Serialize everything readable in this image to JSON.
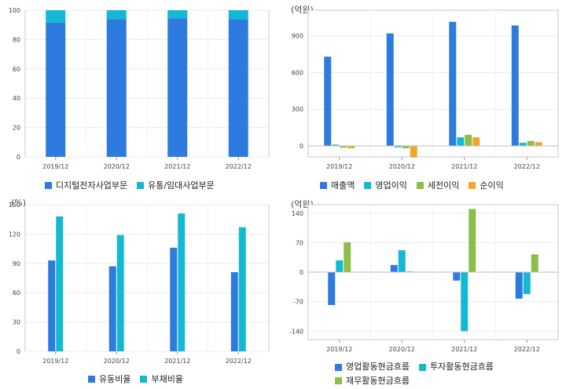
{
  "colors": {
    "blue": "#2e7bdf",
    "cyan": "#13b9d2",
    "green": "#8dbe4a",
    "orange": "#f2a72a"
  },
  "chart_data": [
    {
      "id": "business-mix",
      "type": "bar",
      "stacked": true,
      "unit": "",
      "categories": [
        "2019/12",
        "2020/12",
        "2021/12",
        "2022/12"
      ],
      "yticks": [
        0,
        20,
        40,
        60,
        80,
        100
      ],
      "ylim": [
        0,
        100
      ],
      "grid": true,
      "legend_position": "bottom",
      "series": [
        {
          "name": "디지털전자사업부문",
          "color": "#2e7bdf",
          "values": [
            91.5,
            94.0,
            94.5,
            94.0
          ]
        },
        {
          "name": "유통/임대사업부문",
          "color": "#13b9d2",
          "values": [
            8.5,
            6.0,
            5.5,
            6.0
          ]
        }
      ]
    },
    {
      "id": "income",
      "type": "bar",
      "unit": "(억원)",
      "categories": [
        "2019/12",
        "2020/12",
        "2021/12",
        "2022/12"
      ],
      "yticks": [
        0,
        300,
        600,
        900
      ],
      "ylim": [
        -90,
        1110
      ],
      "grid": true,
      "legend_position": "bottom",
      "series": [
        {
          "name": "매출액",
          "color": "#2e7bdf",
          "values": [
            730,
            920,
            1015,
            985
          ]
        },
        {
          "name": "영업이익",
          "color": "#13b9d2",
          "values": [
            10,
            -12,
            70,
            25
          ]
        },
        {
          "name": "세전이익",
          "color": "#8dbe4a",
          "values": [
            -15,
            -20,
            90,
            40
          ]
        },
        {
          "name": "순이익",
          "color": "#f2a72a",
          "values": [
            -20,
            -95,
            70,
            30
          ]
        }
      ]
    },
    {
      "id": "ratios",
      "type": "bar",
      "unit": "(%)",
      "categories": [
        "2019/12",
        "2020/12",
        "2021/12",
        "2022/12"
      ],
      "yticks": [
        0,
        30,
        60,
        90,
        120,
        150
      ],
      "ylim": [
        0,
        150
      ],
      "grid": true,
      "legend_position": "bottom",
      "series": [
        {
          "name": "유동비율",
          "color": "#2e7bdf",
          "values": [
            93,
            87,
            106,
            81
          ]
        },
        {
          "name": "부채비율",
          "color": "#13b9d2",
          "values": [
            138,
            119,
            141,
            127
          ]
        }
      ]
    },
    {
      "id": "cashflow",
      "type": "bar",
      "unit": "(억원)",
      "categories": [
        "2019/12",
        "2020/12",
        "2021/12",
        "2022/12"
      ],
      "yticks": [
        -140,
        -70,
        0,
        70,
        140
      ],
      "ylim": [
        -160,
        160
      ],
      "grid": true,
      "legend_position": "bottom",
      "series": [
        {
          "name": "영업활동현금흐름",
          "color": "#2e7bdf",
          "values": [
            -78,
            17,
            -20,
            -63
          ]
        },
        {
          "name": "투자활동현금흐름",
          "color": "#13b9d2",
          "values": [
            28,
            52,
            -140,
            -52
          ]
        },
        {
          "name": "재무활동현금흐름",
          "color": "#8dbe4a",
          "values": [
            71,
            2,
            150,
            42
          ]
        }
      ]
    }
  ]
}
